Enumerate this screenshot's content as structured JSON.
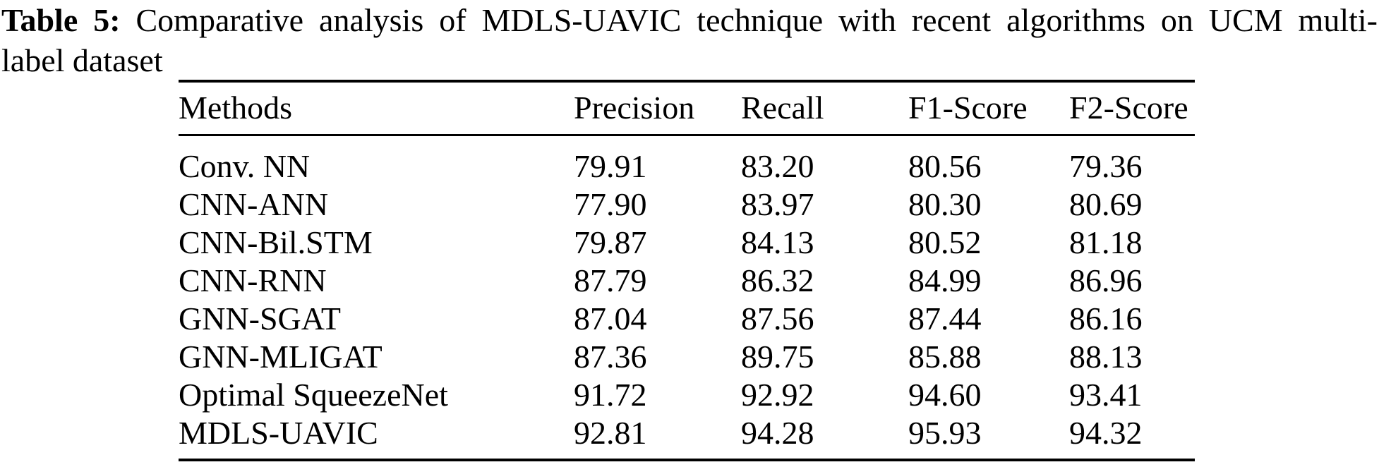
{
  "caption": {
    "label": "Table 5:",
    "line1_rest": " Comparative analysis of MDLS-UAVIC technique with recent algorithms on UCM multi-",
    "line2": "label dataset"
  },
  "table": {
    "columns": [
      "Methods",
      "Precision",
      "Recall",
      "F1-Score",
      "F2-Score"
    ],
    "rows": [
      {
        "method": "Conv. NN",
        "values": [
          "79.91",
          "83.20",
          "80.56",
          "79.36"
        ]
      },
      {
        "method": "CNN-ANN",
        "values": [
          "77.90",
          "83.97",
          "80.30",
          "80.69"
        ]
      },
      {
        "method": "CNN-Bil.STM",
        "values": [
          "79.87",
          "84.13",
          "80.52",
          "81.18"
        ]
      },
      {
        "method": "CNN-RNN",
        "values": [
          "87.79",
          "86.32",
          "84.99",
          "86.96"
        ]
      },
      {
        "method": "GNN-SGAT",
        "values": [
          "87.04",
          "87.56",
          "87.44",
          "86.16"
        ]
      },
      {
        "method": "GNN-MLIGAT",
        "values": [
          "87.36",
          "89.75",
          "85.88",
          "88.13"
        ]
      },
      {
        "method": "Optimal SqueezeNet",
        "values": [
          "91.72",
          "92.92",
          "94.60",
          "93.41"
        ]
      },
      {
        "method": "MDLS-UAVIC",
        "values": [
          "92.81",
          "94.28",
          "95.93",
          "94.32"
        ]
      }
    ]
  },
  "colors": {
    "text": "#000000",
    "background": "#ffffff",
    "rule": "#000000"
  }
}
